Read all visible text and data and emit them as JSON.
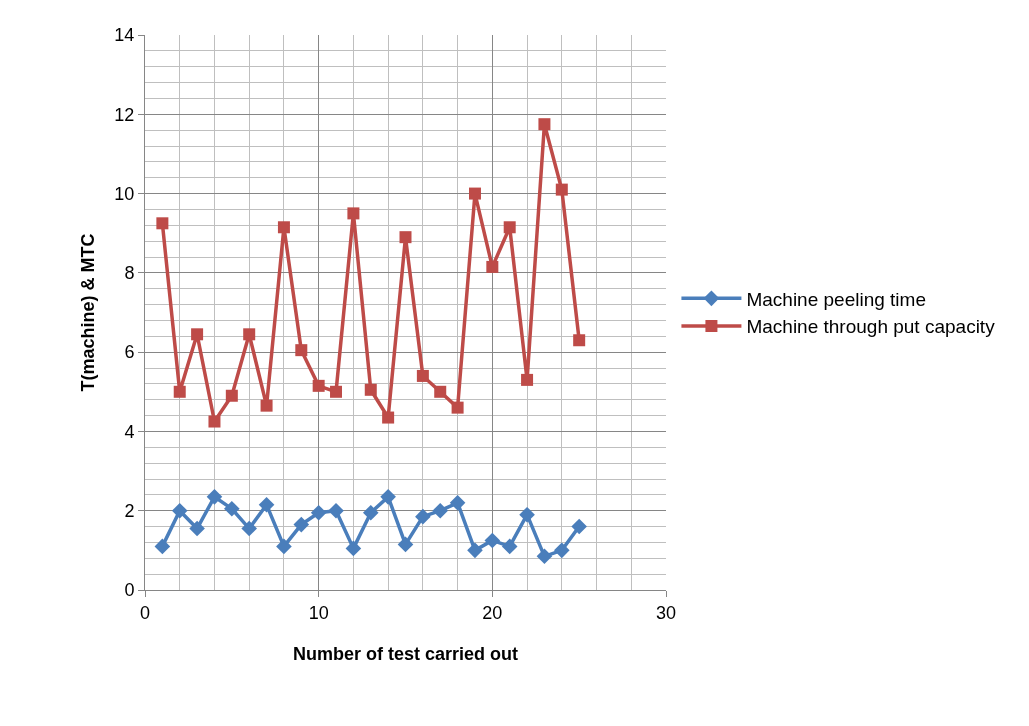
{
  "chart_data": {
    "type": "line",
    "xlabel": "Number of test carried out",
    "ylabel": "T(machine) & MTC",
    "x": [
      1,
      2,
      3,
      4,
      5,
      6,
      7,
      8,
      9,
      10,
      11,
      12,
      13,
      14,
      15,
      16,
      17,
      18,
      19,
      20,
      21,
      22,
      23,
      24,
      25
    ],
    "series": [
      {
        "name": "Machine peeling time",
        "color": "#4a7ebb",
        "marker": "diamond",
        "values": [
          1.1,
          2.0,
          1.55,
          2.35,
          2.05,
          1.55,
          2.15,
          1.1,
          1.65,
          1.95,
          2.0,
          1.05,
          1.95,
          2.35,
          1.15,
          1.85,
          2.0,
          2.2,
          1.0,
          1.25,
          1.1,
          1.9,
          0.85,
          1.0,
          1.6
        ]
      },
      {
        "name": "Machine through put capacity",
        "color": "#be4b48",
        "marker": "square",
        "values": [
          9.25,
          5.0,
          6.45,
          4.25,
          4.9,
          6.45,
          4.65,
          9.15,
          6.05,
          5.15,
          5.0,
          9.5,
          5.05,
          4.35,
          8.9,
          5.4,
          5.0,
          4.6,
          10.0,
          8.15,
          9.15,
          5.3,
          11.75,
          10.1,
          6.3
        ]
      }
    ],
    "xlim": [
      0,
      30
    ],
    "xticks": [
      0,
      10,
      20,
      30
    ],
    "ylim": [
      0,
      14
    ],
    "yticks": [
      0,
      2,
      4,
      6,
      8,
      10,
      12,
      14
    ],
    "grid": true,
    "legend": "right",
    "line_style": "solid"
  }
}
